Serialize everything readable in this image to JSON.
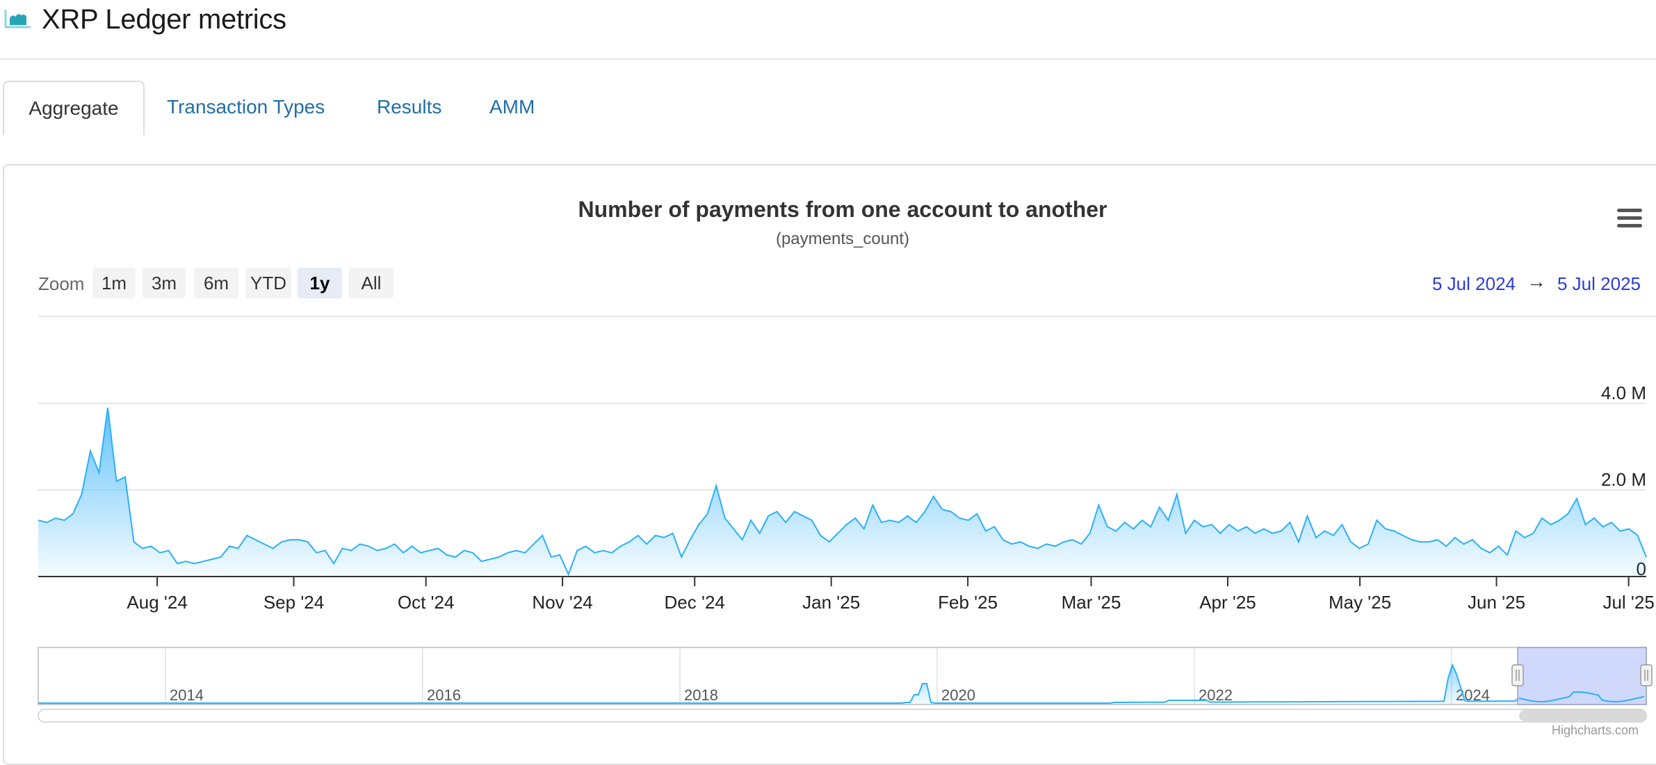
{
  "app": {
    "title": "XRP Ledger metrics",
    "icon": "area-chart-icon"
  },
  "tabs": [
    {
      "label": "Aggregate",
      "active": true
    },
    {
      "label": "Transaction Types",
      "active": false
    },
    {
      "label": "Results",
      "active": false
    },
    {
      "label": "AMM",
      "active": false
    }
  ],
  "chart": {
    "menu_icon": "hamburger-menu-icon",
    "zoom": {
      "label": "Zoom",
      "buttons": [
        {
          "label": "1m",
          "active": false
        },
        {
          "label": "3m",
          "active": false
        },
        {
          "label": "6m",
          "active": false
        },
        {
          "label": "YTD",
          "active": false
        },
        {
          "label": "1y",
          "active": true
        },
        {
          "label": "All",
          "active": false
        }
      ]
    },
    "range": {
      "from": "5 Jul 2024",
      "arrow": "→",
      "to": "5 Jul 2025"
    },
    "credit": "Highcharts.com",
    "colors": {
      "line": "#2caffe",
      "accent": "#2a3cd8",
      "navigator_mask": "#c8d2fa"
    }
  },
  "chart_data": {
    "type": "area",
    "title": "Number of payments from one account to another",
    "subtitle": "(payments_count)",
    "x_range": [
      "2024-07-05",
      "2025-07-05"
    ],
    "x_ticks": [
      "Aug '24",
      "Sep '24",
      "Oct '24",
      "Nov '24",
      "Dec '24",
      "Jan '25",
      "Feb '25",
      "Mar '25",
      "Apr '25",
      "May '25",
      "Jun '25",
      "Jul '25"
    ],
    "y_ticks": [
      "0",
      "2.0 M",
      "4.0 M"
    ],
    "ylim": [
      0,
      4000000
    ],
    "grid": true,
    "series": [
      {
        "values_millions": [
          1.3,
          1.25,
          1.35,
          1.3,
          1.45,
          1.9,
          2.9,
          2.4,
          3.9,
          2.2,
          2.3,
          0.8,
          0.65,
          0.7,
          0.55,
          0.6,
          0.3,
          0.35,
          0.3,
          0.35,
          0.4,
          0.45,
          0.7,
          0.65,
          0.95,
          0.85,
          0.75,
          0.65,
          0.8,
          0.85,
          0.85,
          0.8,
          0.55,
          0.6,
          0.3,
          0.65,
          0.6,
          0.75,
          0.7,
          0.6,
          0.65,
          0.75,
          0.55,
          0.7,
          0.55,
          0.6,
          0.65,
          0.5,
          0.45,
          0.6,
          0.55,
          0.35,
          0.4,
          0.45,
          0.55,
          0.6,
          0.55,
          0.75,
          0.95,
          0.45,
          0.5,
          0.05,
          0.6,
          0.7,
          0.55,
          0.6,
          0.55,
          0.7,
          0.8,
          0.95,
          0.75,
          0.95,
          0.9,
          1.0,
          0.45,
          0.85,
          1.2,
          1.45,
          2.1,
          1.35,
          1.1,
          0.85,
          1.3,
          1.0,
          1.4,
          1.5,
          1.25,
          1.5,
          1.4,
          1.3,
          0.95,
          0.8,
          1.0,
          1.2,
          1.35,
          1.1,
          1.65,
          1.25,
          1.3,
          1.25,
          1.4,
          1.25,
          1.5,
          1.85,
          1.55,
          1.5,
          1.35,
          1.3,
          1.45,
          1.05,
          1.15,
          0.85,
          0.75,
          0.8,
          0.7,
          0.65,
          0.75,
          0.7,
          0.8,
          0.85,
          0.75,
          1.0,
          1.65,
          1.15,
          1.05,
          1.25,
          1.1,
          1.3,
          1.15,
          1.6,
          1.3,
          1.9,
          1.0,
          1.3,
          1.15,
          1.2,
          1.0,
          1.2,
          1.05,
          1.15,
          1.0,
          1.1,
          1.0,
          1.05,
          1.25,
          0.8,
          1.4,
          0.9,
          1.05,
          0.95,
          1.2,
          0.8,
          0.65,
          0.75,
          1.3,
          1.1,
          1.05,
          0.95,
          0.85,
          0.8,
          0.8,
          0.85,
          0.7,
          0.9,
          0.75,
          0.85,
          0.65,
          0.55,
          0.7,
          0.5,
          1.05,
          0.9,
          1.0,
          1.35,
          1.2,
          1.3,
          1.45,
          1.8,
          1.2,
          1.35,
          1.15,
          1.25,
          1.05,
          1.1,
          0.95,
          0.45
        ]
      }
    ],
    "navigator": {
      "x_labels": [
        "2014",
        "2016",
        "2018",
        "2020",
        "2022",
        "2024"
      ],
      "selection": [
        "2024-07-05",
        "2025-07-05"
      ]
    }
  }
}
